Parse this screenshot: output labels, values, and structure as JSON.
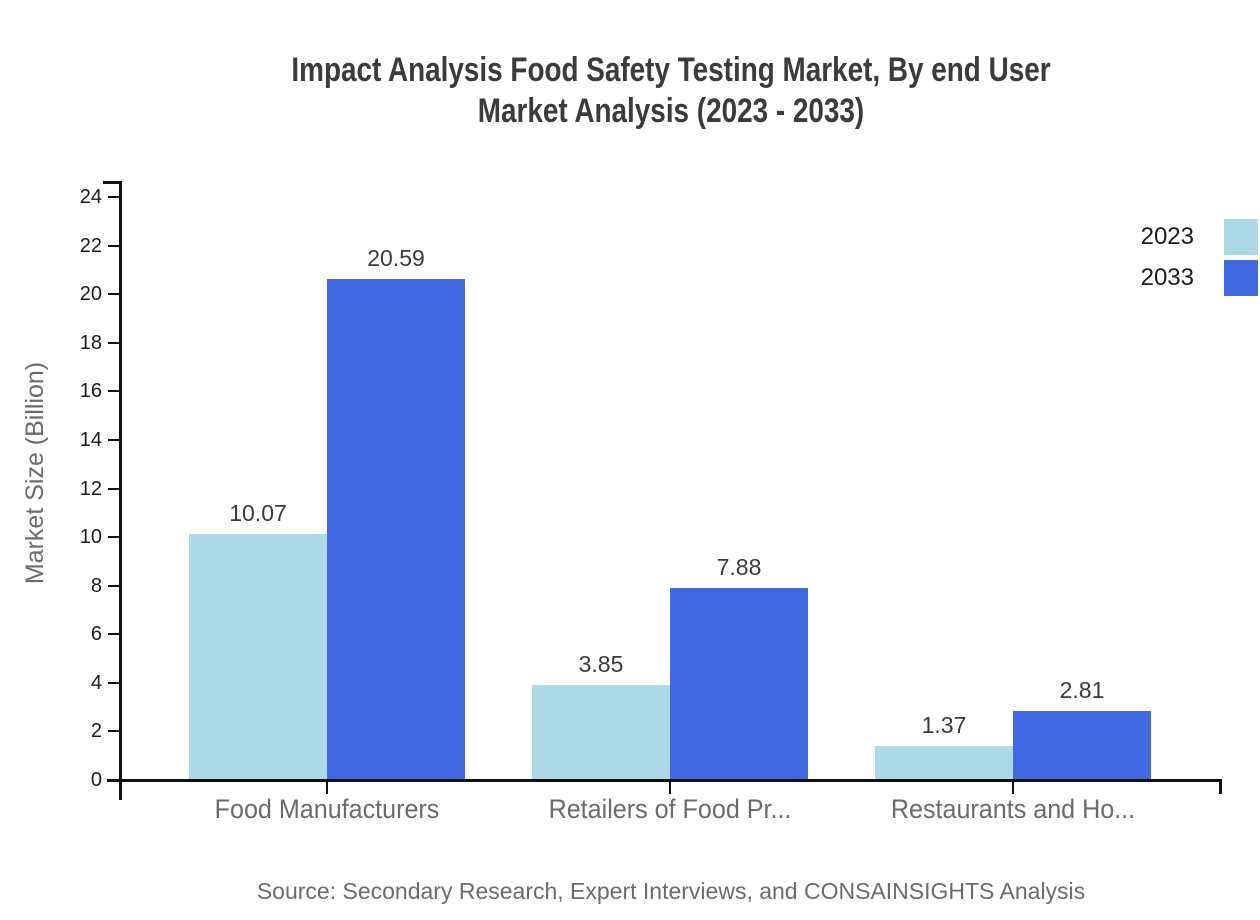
{
  "title": {
    "line1": "Impact Analysis Food Safety Testing Market, By end User",
    "line2": "Market Analysis (2023 - 2033)"
  },
  "source_text": "Source: Secondary Research, Expert Interviews, and CONSAINSIGHTS Analysis",
  "chart_data": {
    "type": "bar",
    "title": "Impact Analysis Food Safety Testing Market, By end User Market Analysis (2023 - 2033)",
    "categories": [
      "Food Manufacturers",
      "Retailers of Food Pr...",
      "Restaurants and Ho..."
    ],
    "series": [
      {
        "name": "2023",
        "color": "#ADD8E6",
        "values": [
          10.07,
          3.85,
          1.37
        ]
      },
      {
        "name": "2033",
        "color": "#4169E1",
        "values": [
          20.59,
          7.88,
          2.81
        ]
      }
    ],
    "xlabel": "",
    "ylabel": "Market Size (Billion)",
    "ylim": [
      0,
      24
    ],
    "ytick_step": 2,
    "grid": false,
    "legend_position": "top-right",
    "value_labels": true,
    "axis_color": "#111111",
    "tick_label_color": "#1c1c1c",
    "category_label_color": "#6b6b6b",
    "value_label_color": "#3a3a3a",
    "title_color": "#3b3b3b"
  }
}
